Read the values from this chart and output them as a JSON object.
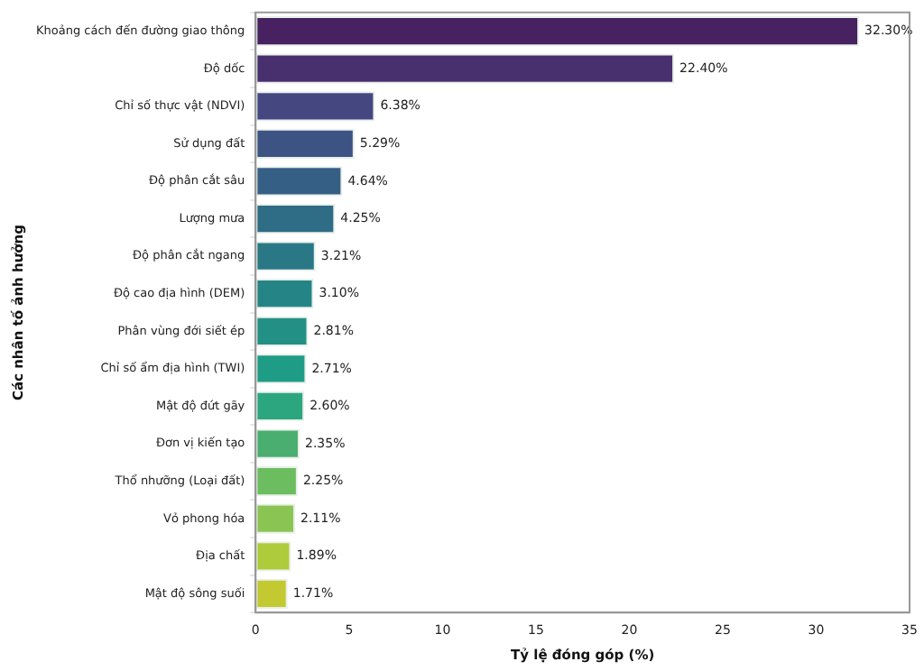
{
  "chart_data": {
    "type": "bar",
    "orientation": "horizontal",
    "xlabel": "Tỷ lệ đóng góp (%)",
    "ylabel": "Các nhân tố ảnh hưởng",
    "categories": [
      "Khoảng cách đến đường giao thông",
      "Độ dốc",
      "Chỉ số thực vật (NDVI)",
      "Sử dụng đất",
      "Độ phân cắt sâu",
      "Lượng mưa",
      "Độ phân cắt ngang",
      "Độ cao địa hình (DEM)",
      "Phân vùng đới siết ép",
      "Chỉ số ẩm địa hình (TWI)",
      "Mật độ đứt gãy",
      "Đơn vị kiến tạo",
      "Thổ nhưỡng (Loại đất)",
      "Vỏ phong hóa",
      "Địa chất",
      "Mật độ sông suối"
    ],
    "values": [
      32.3,
      22.4,
      6.38,
      5.29,
      4.64,
      4.25,
      3.21,
      3.1,
      2.81,
      2.71,
      2.6,
      2.35,
      2.25,
      2.11,
      1.89,
      1.71
    ],
    "value_labels": [
      "32.30%",
      "22.40%",
      "6.38%",
      "5.29%",
      "4.64%",
      "4.25%",
      "3.21%",
      "3.10%",
      "2.81%",
      "2.71%",
      "2.60%",
      "2.35%",
      "2.25%",
      "2.11%",
      "1.89%",
      "1.71%"
    ],
    "colors": [
      "#472160",
      "#482f6e",
      "#444780",
      "#3d5383",
      "#355f84",
      "#2f6c86",
      "#2a7886",
      "#258485",
      "#229085",
      "#1f9c86",
      "#2ba67f",
      "#4aae70",
      "#6cbd60",
      "#8ac553",
      "#aecb3b",
      "#c3c931"
    ],
    "xlim": [
      0,
      35
    ],
    "xticks": [
      0,
      5,
      10,
      15,
      20,
      25,
      30,
      35
    ],
    "grid": false,
    "legend": false
  }
}
